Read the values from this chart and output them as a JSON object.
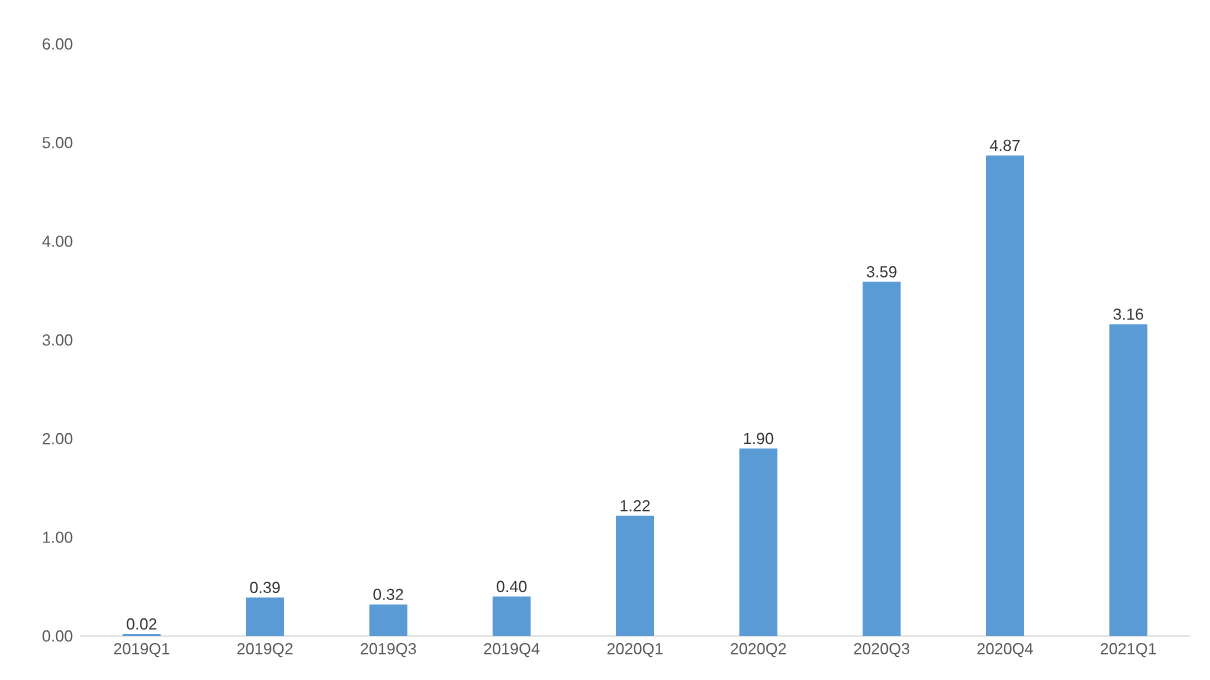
{
  "chart_data": {
    "type": "bar",
    "categories": [
      "2019Q1",
      "2019Q2",
      "2019Q3",
      "2019Q4",
      "2020Q1",
      "2020Q2",
      "2020Q3",
      "2020Q4",
      "2021Q1"
    ],
    "values": [
      0.02,
      0.39,
      0.32,
      0.4,
      1.22,
      1.9,
      3.59,
      4.87,
      3.16
    ],
    "value_labels": [
      "0.02",
      "0.39",
      "0.32",
      "0.40",
      "1.22",
      "1.90",
      "3.59",
      "4.87",
      "3.16"
    ],
    "color": "#5b9bd5",
    "ylim": [
      0,
      6
    ],
    "yticks": [
      {
        "value": 0,
        "label": "0.00"
      },
      {
        "value": 1,
        "label": "1.00"
      },
      {
        "value": 2,
        "label": "2.00"
      },
      {
        "value": 3,
        "label": "3.00"
      },
      {
        "value": 4,
        "label": "4.00"
      },
      {
        "value": 5,
        "label": "5.00"
      },
      {
        "value": 6,
        "label": "6.00"
      }
    ]
  }
}
